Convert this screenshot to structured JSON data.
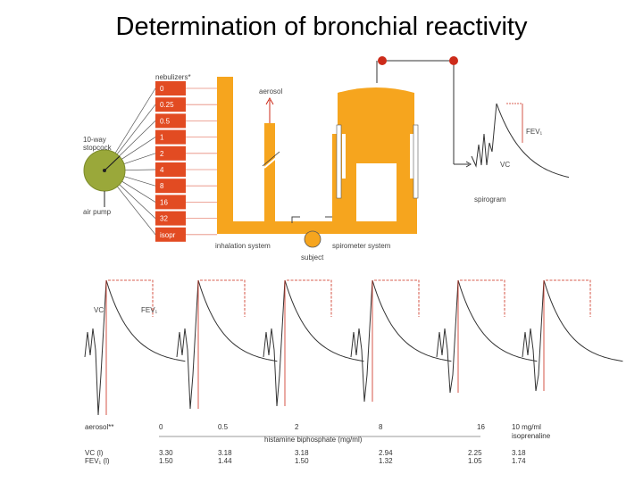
{
  "title": "Determination of bronchial reactivity",
  "nebulizers": {
    "header": "nebulizers*",
    "items": [
      "0",
      "0.25",
      "0.5",
      "1",
      "2",
      "4",
      "8",
      "16",
      "32",
      "isopr"
    ]
  },
  "labels": {
    "stopcock": [
      "10-way",
      "stopcock"
    ],
    "air_pump": "air pump",
    "aerosol_top": "aerosol",
    "inhalation_system": "inhalation system",
    "subject": "subject",
    "spirometer_system": "spirometer system",
    "spirogram": "spirogram",
    "fev1_top": "FEV₁",
    "vc_top": "VC",
    "vc_bottom": "VC",
    "fev1_bottom": "FEV₁"
  },
  "bottom_table": {
    "aerosol_label": "aerosol**",
    "doses": [
      "0",
      "0.5",
      "2",
      "8",
      "16"
    ],
    "dose_unit": "10 mg/ml",
    "isoprenaline": "isoprenaline",
    "axis_label": "histamine biphosphate (mg/ml)",
    "vc_label": "VC (l)",
    "fev1_label": "FEV₁ (l)",
    "vc_values": [
      "3.30",
      "3.18",
      "3.18",
      "2.94",
      "2.25",
      "3.18"
    ],
    "fev1_values": [
      "1.50",
      "1.44",
      "1.50",
      "1.32",
      "1.05",
      "1.74"
    ]
  },
  "colors": {
    "apparatus": "#f6a51e",
    "nebulizer_box": "#e24b22",
    "pump": "#9aa83a",
    "trace": "#333333",
    "marker": "#cc2b1a"
  }
}
